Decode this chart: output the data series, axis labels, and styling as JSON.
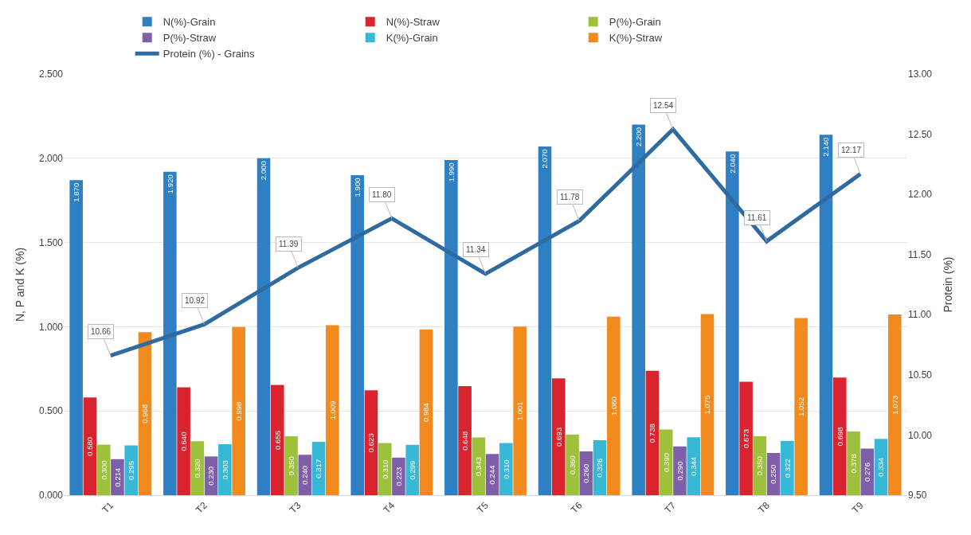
{
  "chart_data": {
    "type": "bar",
    "categories": [
      "T1",
      "T2",
      "T3",
      "T4",
      "T5",
      "T6",
      "T7",
      "T8",
      "T9"
    ],
    "ylabel": "N, P and K (%)",
    "y2label": "Protein (%)",
    "ylim": [
      0,
      2.5
    ],
    "yticks": [
      {
        "value": 0,
        "label": "0.000"
      },
      {
        "value": 0.5,
        "label": "0.500"
      },
      {
        "value": 1,
        "label": "1.000"
      },
      {
        "value": 1.5,
        "label": "1.500"
      },
      {
        "value": 2,
        "label": "2.000"
      },
      {
        "value": 2.5,
        "label": "2.500"
      }
    ],
    "y2lim": [
      9.5,
      13
    ],
    "y2ticks": [
      {
        "value": 9.5,
        "label": "9.50"
      },
      {
        "value": 10,
        "label": "10.00"
      },
      {
        "value": 10.5,
        "label": "10.50"
      },
      {
        "value": 11,
        "label": "11.00"
      },
      {
        "value": 11.5,
        "label": "11.50"
      },
      {
        "value": 12,
        "label": "12.00"
      },
      {
        "value": 12.5,
        "label": "12.50"
      },
      {
        "value": 13,
        "label": "13.00"
      }
    ],
    "grid": "y",
    "legend": "top",
    "series": [
      {
        "name": "N(%)-Grain",
        "color": "#2e7fc4",
        "values": [
          1.87,
          1.92,
          2.0,
          1.9,
          1.99,
          2.07,
          2.2,
          2.04,
          2.14
        ],
        "value_labels": [
          "1.870",
          "1.920",
          "2.000",
          "1.900",
          "1.990",
          "2.070",
          "2.200",
          "2.040",
          "2.140"
        ]
      },
      {
        "name": "N(%)-Straw",
        "color": "#d9232e",
        "values": [
          0.58,
          0.64,
          0.655,
          0.623,
          0.648,
          0.693,
          0.738,
          0.673,
          0.698
        ],
        "value_labels": [
          "0.580",
          "0.640",
          "0.655",
          "0.623",
          "0.648",
          "0.693",
          "0.738",
          "0.673",
          "0.698"
        ]
      },
      {
        "name": "P(%)-Grain",
        "color": "#9dc13a",
        "values": [
          0.3,
          0.32,
          0.35,
          0.31,
          0.343,
          0.36,
          0.39,
          0.35,
          0.378
        ],
        "value_labels": [
          "0.300",
          "0.320",
          "0.350",
          "0.310",
          "0.343",
          "0.360",
          "0.390",
          "0.350",
          "0.378"
        ]
      },
      {
        "name": "P(%)-Straw",
        "color": "#7f5fa8",
        "values": [
          0.214,
          0.23,
          0.24,
          0.223,
          0.244,
          0.26,
          0.29,
          0.25,
          0.276
        ],
        "value_labels": [
          "0.214",
          "0.230",
          "0.240",
          "0.223",
          "0.244",
          "0.260",
          "0.290",
          "0.250",
          "0.276"
        ]
      },
      {
        "name": "K(%)-Grain",
        "color": "#36b8d6",
        "values": [
          0.295,
          0.303,
          0.317,
          0.299,
          0.31,
          0.326,
          0.344,
          0.322,
          0.334
        ],
        "value_labels": [
          "0.295",
          "0.303",
          "0.317",
          "0.299",
          "0.310",
          "0.326",
          "0.344",
          "0.322",
          "0.334"
        ]
      },
      {
        "name": "K(%)-Straw",
        "color": "#f28a1e",
        "values": [
          0.968,
          0.998,
          1.009,
          0.984,
          1.001,
          1.06,
          1.075,
          1.052,
          1.073
        ],
        "value_labels": [
          "0.968",
          "0.998",
          "1.009",
          "0.984",
          "1.001",
          "1.060",
          "1.075",
          "1.052",
          "1.073"
        ]
      },
      {
        "name": "Protein (%) - Grains",
        "type": "line",
        "axis": "y2",
        "color": "#2f6aa0",
        "values": [
          10.66,
          10.92,
          11.39,
          11.8,
          11.34,
          11.78,
          12.54,
          11.61,
          12.17
        ],
        "value_labels": [
          "10.66",
          "10.92",
          "11.39",
          "11.80",
          "11.34",
          "11.78",
          "12.54",
          "11.61",
          "12.17"
        ]
      }
    ]
  }
}
